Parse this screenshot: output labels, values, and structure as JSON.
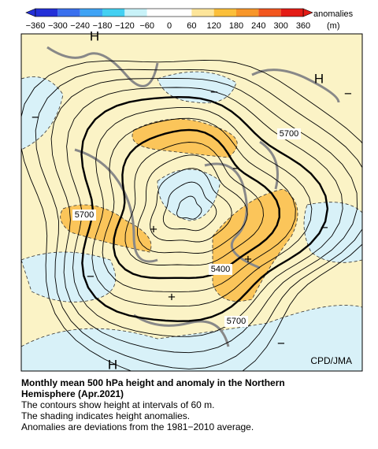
{
  "colorbar": {
    "ticks": [
      "−360",
      "−300",
      "−240",
      "−180",
      "−120",
      "−60",
      "0",
      "60",
      "120",
      "180",
      "240",
      "300",
      "360"
    ],
    "label": "anomalies",
    "unit": "(m)"
  },
  "map": {
    "contour_labels": [
      "5700",
      "5700",
      "5400",
      "5700"
    ],
    "highs": [
      "H",
      "H",
      "H"
    ],
    "plus": [
      "+",
      "+",
      "+"
    ],
    "minus": [
      "−",
      "−",
      "−",
      "−",
      "−",
      "−",
      "−"
    ],
    "credit": "CPD/JMA"
  },
  "caption": {
    "title": [
      "Monthly mean 500 hPa height and anomaly in the Northern",
      "Hemisphere (Apr.2021)"
    ],
    "lines": [
      "The contours show height at intervals of 60 m.",
      "The shading indicates height anomalies.",
      "Anomalies are deviations from the 1981−2010 average."
    ]
  }
}
